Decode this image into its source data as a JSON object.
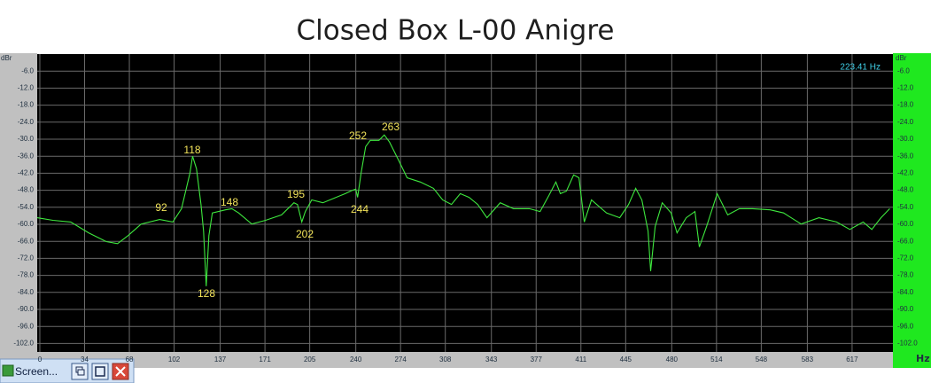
{
  "chart_data": {
    "type": "line",
    "title": "Closed Box L-00 Anigre",
    "ylabel": "dBr",
    "xlabel": "Hz",
    "readout": "223.41 Hz",
    "x": [
      -2,
      10,
      23.5,
      37,
      50.4,
      59,
      67,
      77,
      91,
      101,
      107.6,
      114,
      116,
      119,
      122.4,
      124.4,
      126.4,
      128.4,
      131,
      141,
      145.9,
      151,
      161,
      171.5,
      183.6,
      193,
      195.7,
      199,
      201.7,
      206.5,
      215,
      225,
      232,
      237.4,
      240,
      241.4,
      244,
      247.5,
      251,
      257.6,
      261.6,
      265.6,
      272.4,
      279,
      289,
      299,
      306,
      312.7,
      319.4,
      326,
      332.6,
      339.6,
      349.7,
      359.8,
      371.9,
      380,
      386.7,
      392,
      395.4,
      400,
      405.5,
      409.5,
      413.6,
      419,
      430.4,
      440.5,
      447.2,
      452.6,
      457.3,
      462,
      464,
      467.4,
      472.8,
      479.5,
      484,
      491,
      497.6,
      501,
      506.4,
      514.5,
      522.5,
      531.3,
      541.4,
      554.8,
      565,
      578.3,
      591.8,
      605.2,
      615.3,
      625.4,
      632,
      638.9,
      645.6
    ],
    "series": [
      {
        "color": "#3ee83e",
        "values": [
          -57.7,
          -58.6,
          -59.2,
          -63,
          -66.1,
          -66.8,
          -64,
          -59.9,
          -58.3,
          -59.2,
          -54.5,
          -42,
          -36,
          -40.4,
          -53,
          -62.4,
          -81.8,
          -64,
          -56,
          -54.9,
          -54.5,
          -56,
          -59.9,
          -58.6,
          -56.7,
          -52.4,
          -53,
          -59.2,
          -55.5,
          -51.4,
          -52.4,
          -50.5,
          -49.2,
          -48,
          -47.6,
          -50.5,
          -42,
          -32.6,
          -30.4,
          -30.4,
          -28.5,
          -31,
          -37.3,
          -43.6,
          -45.1,
          -47.3,
          -51.4,
          -53,
          -49.2,
          -50.5,
          -53,
          -57.7,
          -52.4,
          -54.5,
          -54.5,
          -55.5,
          -49.8,
          -45.1,
          -49.2,
          -48.3,
          -42.6,
          -43.6,
          -59.2,
          -51.4,
          -56,
          -57.7,
          -53,
          -47.3,
          -51.4,
          -62.4,
          -76.5,
          -60.8,
          -52.4,
          -56,
          -63,
          -57.7,
          -55.5,
          -68,
          -60.8,
          -49.2,
          -56.7,
          -54.5,
          -54.5,
          -54.9,
          -56,
          -59.9,
          -57.7,
          -59.2,
          -61.8,
          -59.2,
          -61.8,
          -57.7,
          -54.5
        ]
      }
    ],
    "annotations": [
      "92",
      "118",
      "128",
      "148",
      "195",
      "202",
      "244",
      "252",
      "263"
    ],
    "xlim": [
      -2,
      648
    ],
    "xticks": [
      0,
      34,
      68,
      102,
      137,
      171,
      205,
      240,
      274,
      308,
      343,
      377,
      411,
      445,
      480,
      514,
      548,
      583,
      617
    ],
    "ylim": [
      -105,
      0
    ],
    "yticks": [
      {
        "value": -6,
        "label": "-6.0"
      },
      {
        "value": -12,
        "label": "-12.0"
      },
      {
        "value": -18,
        "label": "-18.0"
      },
      {
        "value": -24,
        "label": "-24.0"
      },
      {
        "value": -30,
        "label": "-30.0"
      },
      {
        "value": -36,
        "label": "-36.0"
      },
      {
        "value": -42,
        "label": "-42.0"
      },
      {
        "value": -48,
        "label": "-48.0"
      },
      {
        "value": -54,
        "label": "-54.0"
      },
      {
        "value": -60,
        "label": "-60.0"
      },
      {
        "value": -66,
        "label": "-66.0"
      },
      {
        "value": -72,
        "label": "-72.0"
      },
      {
        "value": -78,
        "label": "-78.0"
      },
      {
        "value": -84,
        "label": "-84.0"
      },
      {
        "value": -90,
        "label": "-90.0"
      },
      {
        "value": -96,
        "label": "-96.0"
      },
      {
        "value": -102,
        "label": "-102.0"
      }
    ],
    "grid": true
  },
  "taskbar": {
    "title": "Screen..."
  }
}
